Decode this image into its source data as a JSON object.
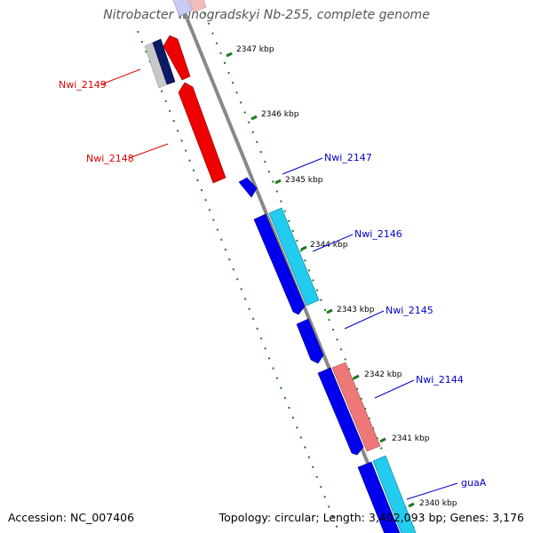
{
  "title": "Nitrobacter winogradskyi Nb-255, complete genome",
  "accession": "Accession: NC_007406",
  "topology": "Topology: circular; Length: 3,402,093 bp; Genes: 3,176",
  "colors": {
    "backbone": "#888888",
    "tick": "#1a7a1a",
    "forward_label": "#0000cc",
    "reverse_label": "#dd0000",
    "cds_forward": "#0000ee",
    "cds_forward_alt": "#22ccee",
    "cds_reverse": "#ee0000",
    "cds_reverse_alt": "#ee7777",
    "cds_dark": "#0a1a66",
    "cds_grey": "#c8c8c8"
  },
  "scale_labels": [
    {
      "kbp": 2347,
      "text": "2347 kbp"
    },
    {
      "kbp": 2346,
      "text": "2346 kbp"
    },
    {
      "kbp": 2345,
      "text": "2345 kbp"
    },
    {
      "kbp": 2344,
      "text": "2344 kbp"
    },
    {
      "kbp": 2343,
      "text": "2343 kbp"
    },
    {
      "kbp": 2342,
      "text": "2342 kbp"
    },
    {
      "kbp": 2341,
      "text": "2341 kbp"
    },
    {
      "kbp": 2340,
      "text": "2340 kbp"
    }
  ],
  "gene_labels": [
    {
      "name": "Nwi_2149",
      "strand": "reverse"
    },
    {
      "name": "Nwi_2148",
      "strand": "reverse"
    },
    {
      "name": "Nwi_2147",
      "strand": "forward"
    },
    {
      "name": "Nwi_2146",
      "strand": "forward"
    },
    {
      "name": "Nwi_2145",
      "strand": "forward"
    },
    {
      "name": "Nwi_2144",
      "strand": "forward"
    },
    {
      "name": "guaA",
      "strand": "forward"
    }
  ]
}
